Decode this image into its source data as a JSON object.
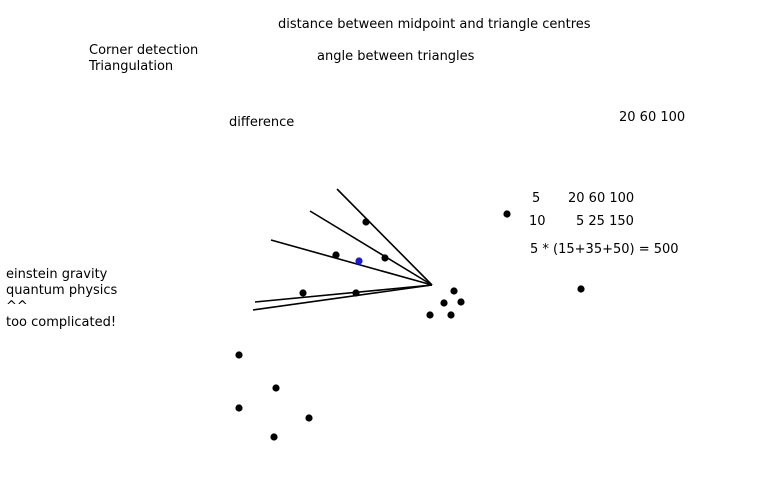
{
  "labels": {
    "distance": "distance between midpoint and triangle centres",
    "angle": "angle between triangles",
    "difference": "difference",
    "top_right_values": "20 60 100"
  },
  "methods": [
    "Corner detection",
    "Triangulation"
  ],
  "notes": [
    "einstein gravity",
    "quantum physics",
    "^^",
    "too complicated!"
  ],
  "table": {
    "rows": [
      {
        "key": "5",
        "values": "20 60 100"
      },
      {
        "key": "10",
        "values": "5 25 150"
      }
    ],
    "formula": "5 * (15+35+50) = 500"
  },
  "colors": {
    "ink": "#000000",
    "highlight_dot": "#1a1adb"
  }
}
